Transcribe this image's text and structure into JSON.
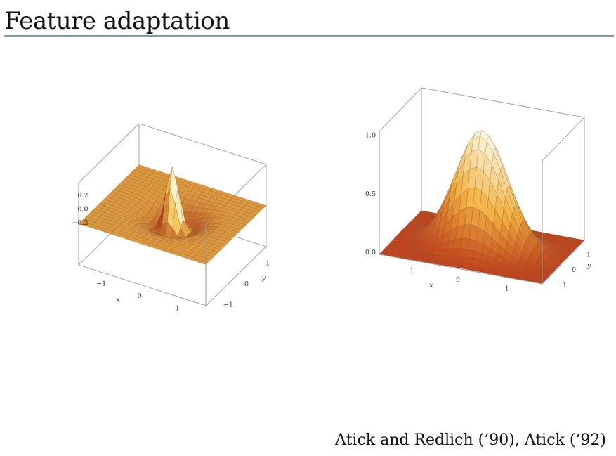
{
  "slide": {
    "title": "Feature adaptation",
    "citation": "Atick and Redlich (‘90), Atick (‘92)"
  },
  "plots": [
    {
      "surface": "center-surround (difference of Gaussians)",
      "z_ticks": [
        "0.2",
        "0.0",
        "−0.2"
      ],
      "x_ticks": [
        "−1",
        "0",
        "1"
      ],
      "y_ticks": [
        "1",
        "0",
        "−1"
      ],
      "x_label": "x",
      "y_label": "y",
      "colors": {
        "high": "#fff8dc",
        "mid": "#f5c04e",
        "low": "#9c1d0a"
      }
    },
    {
      "surface": "broad Gaussian",
      "z_ticks": [
        "1.0",
        "0.5",
        "0.0"
      ],
      "x_ticks": [
        "−1",
        "0",
        "1"
      ],
      "y_ticks": [
        "1",
        "0",
        "−1"
      ],
      "x_label": "x",
      "y_label": "y",
      "colors": {
        "high": "#fffbe8",
        "mid": "#f3b142",
        "low": "#b3200e"
      }
    }
  ]
}
